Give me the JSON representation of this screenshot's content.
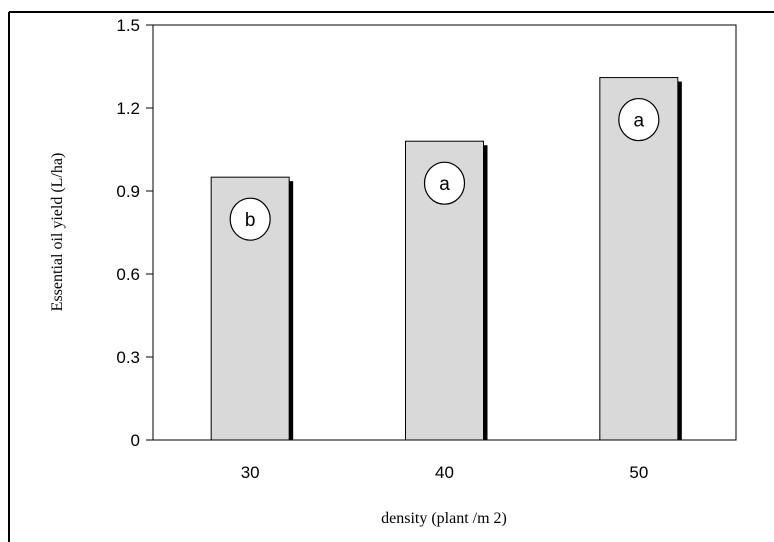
{
  "chart_data": {
    "type": "bar",
    "categories": [
      "30",
      "40",
      "50"
    ],
    "values": [
      0.95,
      1.08,
      1.31
    ],
    "letters": [
      "b",
      "a",
      "a"
    ],
    "title": "",
    "xlabel": "density (plant /m 2)",
    "ylabel": "Essential oil yield (L/ha)",
    "ylim": [
      0,
      1.5
    ],
    "yticks": [
      "0",
      "0.3",
      "0.6",
      "0.9",
      "1.2",
      "1.5"
    ],
    "grid": false,
    "legend": "none",
    "colors": {
      "bar_fill": "#d9d9d9",
      "bar_shadow": "#000000",
      "axis": "#000000"
    }
  }
}
